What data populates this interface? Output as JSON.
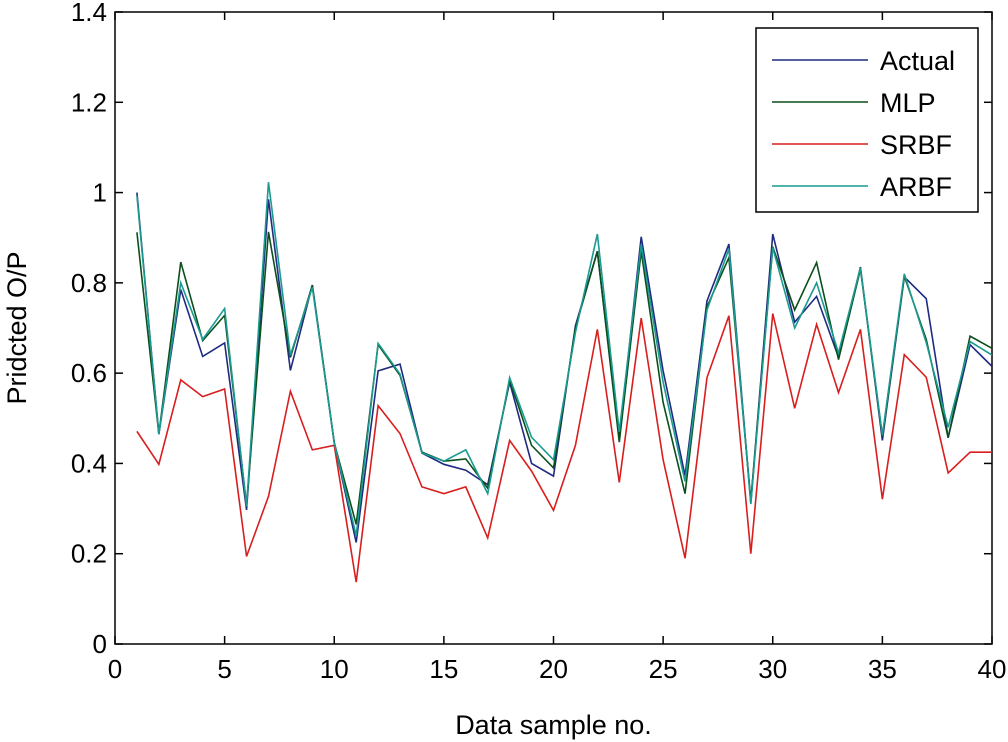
{
  "chart_data": {
    "type": "line",
    "title": "",
    "xlabel": "Data sample no.",
    "ylabel": "Pridcted O/P",
    "xlim": [
      0,
      40
    ],
    "ylim": [
      0,
      1.4
    ],
    "xticks": [
      0,
      5,
      10,
      15,
      20,
      25,
      30,
      35,
      40
    ],
    "yticks": [
      0,
      0.2,
      0.4,
      0.6,
      0.8,
      1,
      1.2,
      1.4
    ],
    "xtick_labels": [
      "0",
      "5",
      "10",
      "15",
      "20",
      "25",
      "30",
      "35",
      "40"
    ],
    "ytick_labels": [
      "0",
      "0.2",
      "0.4",
      "0.6",
      "0.8",
      "1",
      "1.2",
      "1.4"
    ],
    "grid": false,
    "legend_position": "top-right",
    "x": [
      1,
      2,
      3,
      4,
      5,
      6,
      7,
      8,
      9,
      10,
      11,
      12,
      13,
      14,
      15,
      16,
      17,
      18,
      19,
      20,
      21,
      22,
      23,
      24,
      25,
      26,
      27,
      28,
      29,
      30,
      31,
      32,
      33,
      34,
      35,
      36,
      37,
      38,
      39,
      40
    ],
    "series": [
      {
        "name": "Actual",
        "color": "#1f2a80",
        "values": [
          1.0,
          0.465,
          0.785,
          0.637,
          0.667,
          0.297,
          0.985,
          0.606,
          0.795,
          0.446,
          0.225,
          0.605,
          0.62,
          0.423,
          0.398,
          0.385,
          0.353,
          0.58,
          0.4,
          0.372,
          0.705,
          0.87,
          0.455,
          0.902,
          0.605,
          0.373,
          0.76,
          0.886,
          0.313,
          0.908,
          0.713,
          0.77,
          0.635,
          0.835,
          0.451,
          0.813,
          0.765,
          0.457,
          0.663,
          0.615
        ]
      },
      {
        "name": "MLP",
        "color": "#0b4f1c",
        "values": [
          0.912,
          0.465,
          0.846,
          0.672,
          0.728,
          0.308,
          0.913,
          0.635,
          0.795,
          0.446,
          0.265,
          0.663,
          0.595,
          0.425,
          0.405,
          0.41,
          0.345,
          0.585,
          0.44,
          0.39,
          0.7,
          0.87,
          0.447,
          0.87,
          0.535,
          0.333,
          0.747,
          0.856,
          0.318,
          0.88,
          0.74,
          0.845,
          0.63,
          0.83,
          0.46,
          0.815,
          0.675,
          0.457,
          0.682,
          0.655
        ]
      },
      {
        "name": "SRBF",
        "color": "#d81e1e",
        "values": [
          0.471,
          0.398,
          0.585,
          0.548,
          0.565,
          0.194,
          0.327,
          0.56,
          0.43,
          0.44,
          0.137,
          0.528,
          0.466,
          0.348,
          0.333,
          0.348,
          0.235,
          0.451,
          0.383,
          0.296,
          0.44,
          0.697,
          0.358,
          0.722,
          0.408,
          0.19,
          0.59,
          0.727,
          0.2,
          0.732,
          0.522,
          0.708,
          0.557,
          0.697,
          0.321,
          0.641,
          0.591,
          0.379,
          0.425,
          0.425
        ]
      },
      {
        "name": "ARBF",
        "color": "#1a9a90",
        "values": [
          0.993,
          0.465,
          0.8,
          0.675,
          0.743,
          0.305,
          1.023,
          0.64,
          0.79,
          0.446,
          0.24,
          0.666,
          0.598,
          0.423,
          0.405,
          0.43,
          0.333,
          0.59,
          0.458,
          0.408,
          0.69,
          0.908,
          0.47,
          0.885,
          0.58,
          0.36,
          0.74,
          0.875,
          0.31,
          0.878,
          0.7,
          0.8,
          0.645,
          0.833,
          0.462,
          0.82,
          0.668,
          0.48,
          0.67,
          0.64
        ]
      }
    ]
  }
}
